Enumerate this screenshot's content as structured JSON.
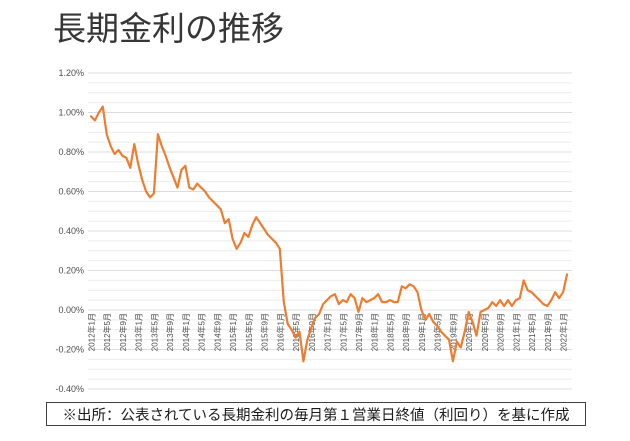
{
  "title": "長期金利の推移",
  "source_note": "※出所：公表されている長期金利の毎月第１営業日終値（利回り）を基に作成",
  "colors": {
    "line": "#ED7D31",
    "gridline_minor": "#ECECEC",
    "gridline_major": "#DCDCDC",
    "axis_text": "#4D4D4D",
    "title_text": "#363636",
    "source_border": "#404040",
    "background": "#FFFFFF"
  },
  "chart_data": {
    "type": "line",
    "title": "長期金利の推移",
    "series_name": "長期金利（利回り）",
    "y_unit": "%",
    "ylim": [
      -0.4,
      1.2
    ],
    "gridline_step": 0.05,
    "grid": "on",
    "legend": "none",
    "x_start": "2012年1月",
    "x_end": "2022年2月",
    "x_tick_interval_months": 4,
    "x_tick_labels": [
      "2012年1月",
      "2012年5月",
      "2012年9月",
      "2013年1月",
      "2013年5月",
      "2013年9月",
      "2014年1月",
      "2014年5月",
      "2014年9月",
      "2015年1月",
      "2015年5月",
      "2015年9月",
      "2016年1月",
      "2016年5月",
      "2016年9月",
      "2017年1月",
      "2017年5月",
      "2017年9月",
      "2018年1月",
      "2018年5月",
      "2018年9月",
      "2019年1月",
      "2019年5月",
      "2019年9月",
      "2020年1月",
      "2020年5月",
      "2020年9月",
      "2021年1月",
      "2021年5月",
      "2021年9月",
      "2022年1月"
    ],
    "y_tick_labels": [
      "1.20%",
      "1.00%",
      "0.80%",
      "0.60%",
      "0.40%",
      "0.20%",
      "0.00%",
      "-0.20%",
      "-0.40%"
    ],
    "y_tick_values": [
      1.2,
      1.0,
      0.8,
      0.6,
      0.4,
      0.2,
      0.0,
      -0.2,
      -0.4
    ],
    "values": [
      0.98,
      0.96,
      1.0,
      1.03,
      0.89,
      0.83,
      0.79,
      0.81,
      0.78,
      0.77,
      0.72,
      0.84,
      0.74,
      0.66,
      0.6,
      0.57,
      0.59,
      0.89,
      0.83,
      0.78,
      0.72,
      0.67,
      0.62,
      0.71,
      0.73,
      0.62,
      0.61,
      0.64,
      0.62,
      0.6,
      0.57,
      0.55,
      0.53,
      0.51,
      0.44,
      0.46,
      0.36,
      0.31,
      0.34,
      0.39,
      0.37,
      0.43,
      0.47,
      0.44,
      0.41,
      0.38,
      0.36,
      0.34,
      0.31,
      0.04,
      -0.07,
      -0.1,
      -0.14,
      -0.11,
      -0.26,
      -0.15,
      -0.09,
      -0.04,
      -0.02,
      0.03,
      0.05,
      0.07,
      0.08,
      0.03,
      0.05,
      0.04,
      0.08,
      0.06,
      -0.01,
      0.06,
      0.04,
      0.05,
      0.06,
      0.08,
      0.04,
      0.04,
      0.05,
      0.04,
      0.04,
      0.12,
      0.11,
      0.13,
      0.12,
      0.09,
      0.0,
      -0.05,
      -0.02,
      -0.06,
      -0.08,
      -0.11,
      -0.13,
      -0.15,
      -0.26,
      -0.16,
      -0.19,
      -0.11,
      -0.01,
      -0.06,
      -0.13,
      -0.01,
      0.0,
      0.01,
      0.04,
      0.02,
      0.05,
      0.02,
      0.05,
      0.02,
      0.05,
      0.06,
      0.15,
      0.1,
      0.09,
      0.07,
      0.05,
      0.03,
      0.02,
      0.05,
      0.09,
      0.06,
      0.09,
      0.18
    ]
  }
}
